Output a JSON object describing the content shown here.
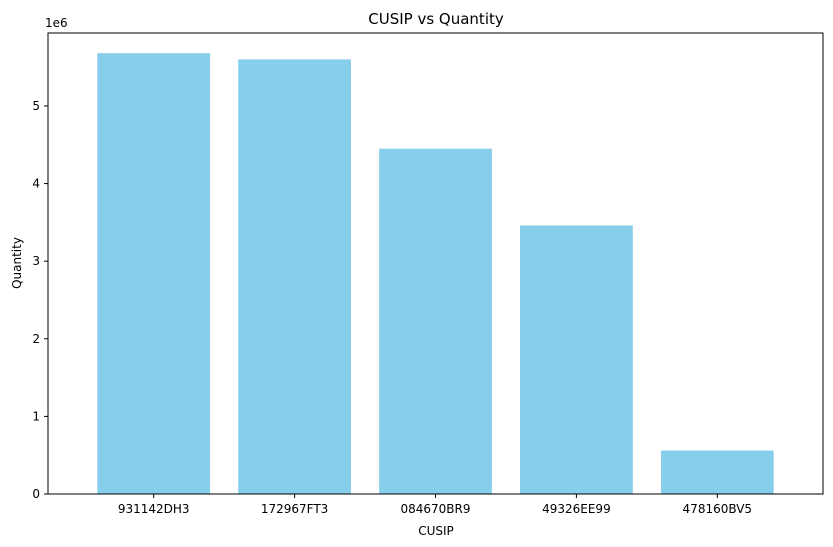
{
  "chart_data": {
    "type": "bar",
    "title": "CUSIP vs Quantity",
    "xlabel": "CUSIP",
    "ylabel": "Quantity",
    "offset_text": "1e6",
    "categories": [
      "931142DH3",
      "172967FT3",
      "084670BR9",
      "49326EE99",
      "478160BV5"
    ],
    "values": [
      5680000,
      5600000,
      4450000,
      3460000,
      560000
    ],
    "ylim": [
      0,
      5940000
    ],
    "yticks": [
      0,
      1000000,
      2000000,
      3000000,
      4000000,
      5000000
    ],
    "ytick_labels": [
      "0",
      "1",
      "2",
      "3",
      "4",
      "5"
    ],
    "bar_color": "#87ceeb",
    "grid": false,
    "legend": false
  }
}
